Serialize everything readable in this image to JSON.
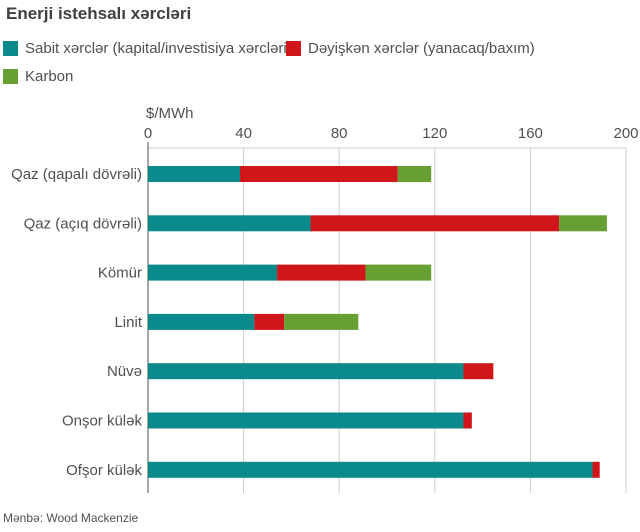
{
  "chart_data": {
    "type": "bar",
    "orientation": "horizontal",
    "stacked": true,
    "title": "Enerji istehsalı xərcləri",
    "unit_label": "$/MWh",
    "xlabel": "",
    "ylabel": "",
    "xlim": [
      0,
      200
    ],
    "xticks": [
      0,
      40,
      80,
      120,
      160,
      200
    ],
    "grid": true,
    "legend_position": "top",
    "categories": [
      "Qaz (qapalı dövrəli)",
      "Qaz (açıq dövrəli)",
      "Kömür",
      "Linit",
      "Nüvə",
      "Onşor külək",
      "Ofşor külək"
    ],
    "series": [
      {
        "name": "Sabit xərclər (kapital/investisiya xərcləri)",
        "color": "#0a8a8a",
        "values": [
          38.5,
          68,
          54,
          44.5,
          132,
          132,
          186
        ]
      },
      {
        "name": "Dəyişkən xərclər (yanacaq/baxım)",
        "color": "#d0151b",
        "values": [
          66,
          104,
          37,
          12.5,
          12.5,
          3.5,
          3
        ]
      },
      {
        "name": "Karbon",
        "color": "#66a032",
        "values": [
          14,
          20,
          27.5,
          31,
          0,
          0,
          0
        ]
      }
    ],
    "source": "Mənbə: Wood Mackenzie"
  }
}
